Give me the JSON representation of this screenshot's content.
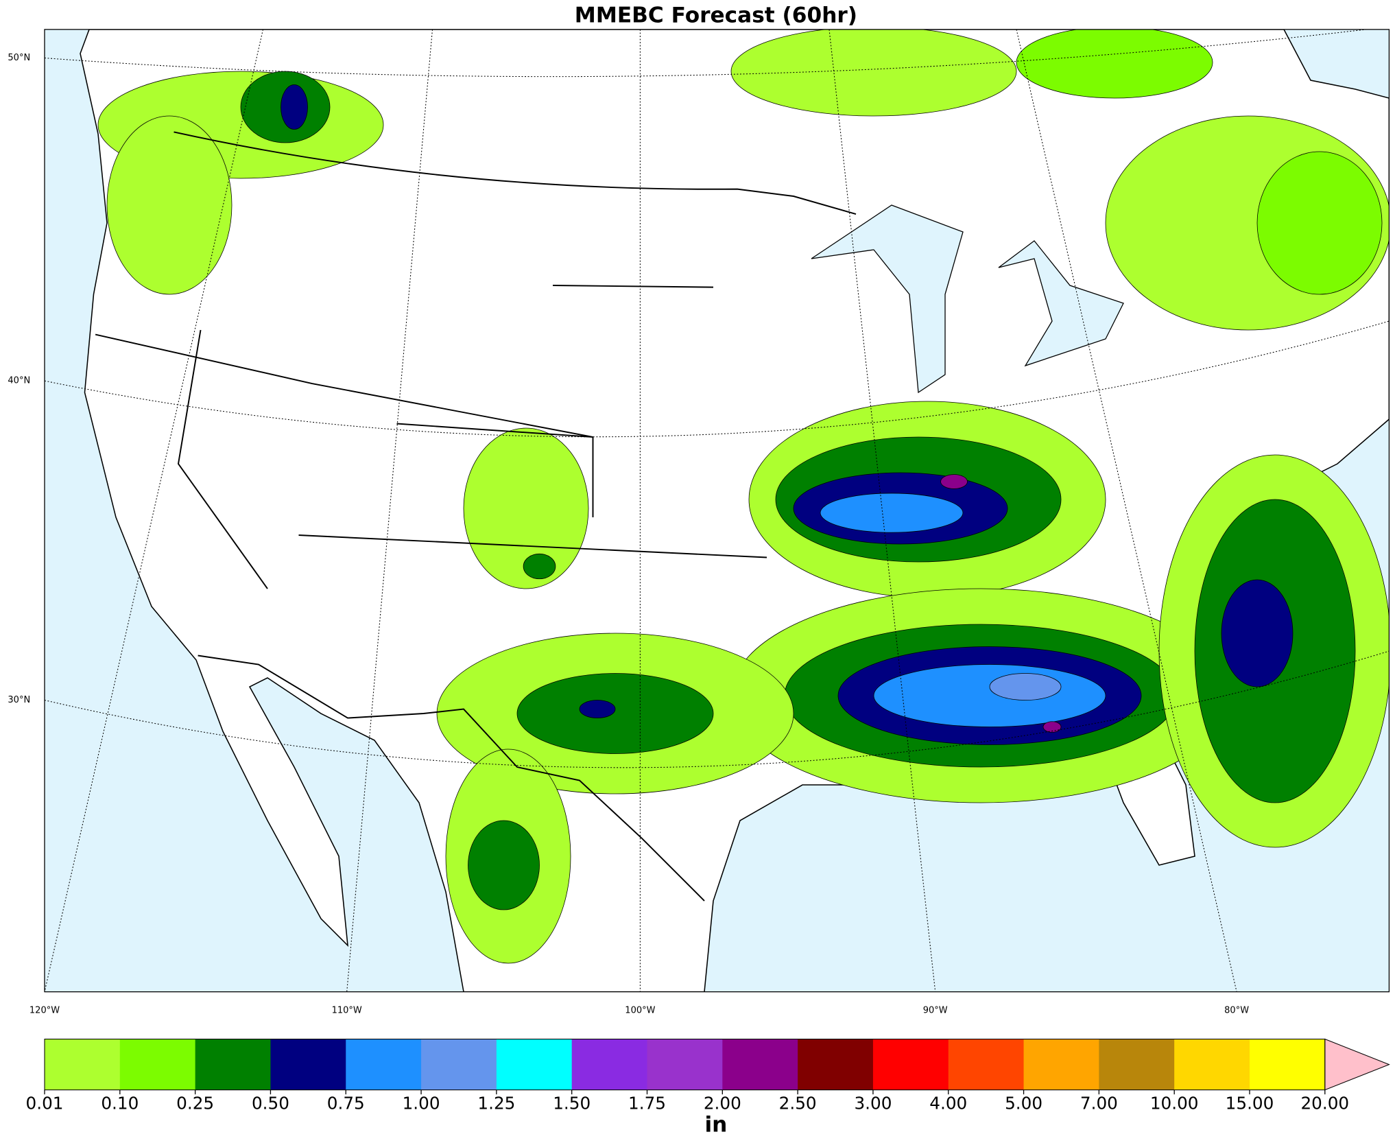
{
  "title": "MMEBC Forecast (60hr)",
  "map": {
    "lat_labels": [
      "50°N",
      "40°N",
      "30°N"
    ],
    "lon_labels": [
      "120°W",
      "110°W",
      "100°W",
      "90°W",
      "80°W"
    ],
    "ocean_color": "#dff4fd",
    "land_color": "#ffffff"
  },
  "colorbar": {
    "ticks": [
      {
        "value": 0.01,
        "label": "0.01"
      },
      {
        "value": 0.1,
        "label": "0.10"
      },
      {
        "value": 0.25,
        "label": "0.25"
      },
      {
        "value": 0.5,
        "label": "0.50"
      },
      {
        "value": 0.75,
        "label": "0.75"
      },
      {
        "value": 1,
        "label": "1.00"
      },
      {
        "value": 1.25,
        "label": "1.25"
      },
      {
        "value": 1.5,
        "label": "1.50"
      },
      {
        "value": 1.75,
        "label": "1.75"
      },
      {
        "value": 2,
        "label": "2.00"
      },
      {
        "value": 2.5,
        "label": "2.50"
      },
      {
        "value": 3,
        "label": "3.00"
      },
      {
        "value": 4,
        "label": "4.00"
      },
      {
        "value": 5,
        "label": "5.00"
      },
      {
        "value": 7,
        "label": "7.00"
      },
      {
        "value": 10,
        "label": "10.00"
      },
      {
        "value": 15,
        "label": "15.00"
      },
      {
        "value": 20,
        "label": "20.00"
      }
    ],
    "colors": [
      "#adff2f",
      "#7cfc00",
      "#008000",
      "#000080",
      "#1e90ff",
      "#6495ed",
      "#00ffff",
      "#8a2be2",
      "#9932cc",
      "#8b008b",
      "#800000",
      "#ff0000",
      "#ff4500",
      "#ffa500",
      "#b8860b",
      "#ffd700",
      "#ffff00"
    ],
    "extend_color": "#ffc0cb",
    "unit": "in"
  }
}
